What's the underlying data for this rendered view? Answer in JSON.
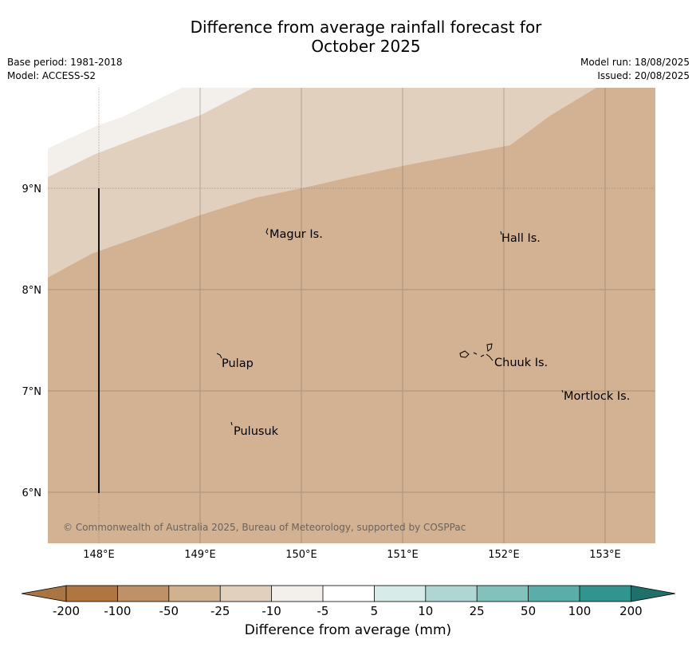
{
  "header": {
    "title_line1": "Difference from average rainfall forecast for",
    "title_line2": "October 2025",
    "base_period": "Base period: 1981-2018",
    "model": "Model: ACCESS-S2",
    "model_run": "Model run: 18/08/2025",
    "issued": "Issued: 20/08/2025"
  },
  "map": {
    "lat_labels": [
      "9°N",
      "8°N",
      "7°N",
      "6°N"
    ],
    "lon_labels": [
      "148°E",
      "149°E",
      "150°E",
      "151°E",
      "152°E",
      "153°E"
    ],
    "places": [
      "Magur Is.",
      "Hall Is.",
      "Pulap",
      "Chuuk Is.",
      "Mortlock Is.",
      "Pulusuk"
    ],
    "copyright": "© Commonwealth of Australia 2025, Bureau of Meteorology, supported by COSPPac",
    "bands": [
      {
        "category": "-50 to -25",
        "color": "#d2b293"
      },
      {
        "category": "-25 to -10",
        "color": "#e2d0bf"
      },
      {
        "category": "-10 to -5",
        "color": "#f3efea"
      }
    ]
  },
  "colorbar": {
    "title": "Difference from average (mm)",
    "labels": [
      "-200",
      "-100",
      "-50",
      "-25",
      "-10",
      "-5",
      "5",
      "10",
      "25",
      "50",
      "100",
      "200"
    ],
    "colors": [
      "#a87543",
      "#af7641",
      "#bf9168",
      "#d0b190",
      "#e2d0bf",
      "#f3efea",
      "#ffffff",
      "#d7ebe8",
      "#afd6d3",
      "#83c1bd",
      "#5bada9",
      "#32948f",
      "#1f6f6b"
    ]
  }
}
